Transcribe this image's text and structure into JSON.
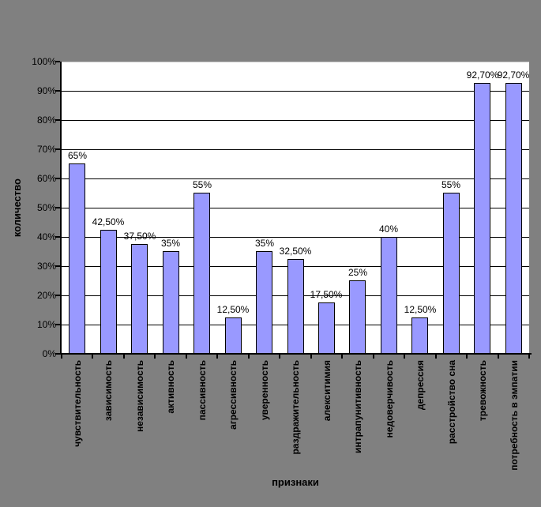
{
  "chart": {
    "background_color": "#808080",
    "plot_bg_color": "#FFFFFF",
    "bar_fill": "#9999FF",
    "bar_border": "#000000",
    "gridline_color": "#000000"
  },
  "chart_data": {
    "type": "bar",
    "title": "",
    "xlabel": "признаки",
    "ylabel": "количество",
    "categories": [
      "чувствительность",
      "зависимость",
      "независимость",
      "активность",
      "пассивность",
      "агрессивность",
      "уверенность",
      "раздражительность",
      "алекситимия",
      "интрапунитивность",
      "недоверчивость",
      "депрессия",
      "расстройство сна",
      "тревожность",
      "потребность в эмпатии"
    ],
    "values": [
      65,
      42.5,
      37.5,
      35,
      55,
      12.5,
      35,
      32.5,
      17.5,
      25,
      40,
      12.5,
      55,
      92.7,
      92.7
    ],
    "data_labels": [
      "65%",
      "42,50%",
      "37,50%",
      "35%",
      "55%",
      "12,50%",
      "35%",
      "32,50%",
      "17,50%",
      "25%",
      "40%",
      "12,50%",
      "55%",
      "92,70%",
      "92,70%"
    ],
    "ylim": [
      0,
      100
    ],
    "yticks": [
      0,
      10,
      20,
      30,
      40,
      50,
      60,
      70,
      80,
      90,
      100
    ],
    "ytick_labels": [
      "0%",
      "10%",
      "20%",
      "30%",
      "40%",
      "50%",
      "60%",
      "70%",
      "80%",
      "90%",
      "100%"
    ],
    "grid": true,
    "legend": "none"
  }
}
